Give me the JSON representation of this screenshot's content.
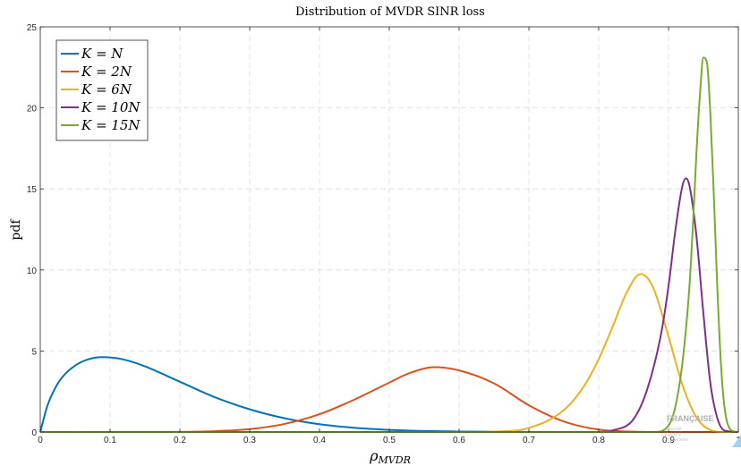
{
  "chart_data": {
    "type": "line",
    "title": "Distribution of MVDR SINR loss",
    "xlabel": "ρ_MVDR",
    "ylabel": "pdf",
    "xlim": [
      0,
      1
    ],
    "ylim": [
      0,
      25
    ],
    "xticks": [
      0,
      0.1,
      0.2,
      0.3,
      0.4,
      0.5,
      0.6,
      0.7,
      0.8,
      0.9,
      1
    ],
    "yticks": [
      0,
      5,
      10,
      15,
      20,
      25
    ],
    "grid": true,
    "legend_position": "top-left",
    "series": [
      {
        "name": "K = N",
        "color": "#0072BD",
        "x": [
          0,
          0.01,
          0.02,
          0.03,
          0.05,
          0.07,
          0.09,
          0.11,
          0.13,
          0.15,
          0.2,
          0.25,
          0.3,
          0.35,
          0.4,
          0.45,
          0.5,
          0.55,
          0.6,
          0.7,
          0.8,
          1
        ],
        "y": [
          0,
          1.6,
          2.6,
          3.3,
          4.1,
          4.5,
          4.62,
          4.55,
          4.35,
          4.05,
          3.1,
          2.15,
          1.4,
          0.85,
          0.48,
          0.26,
          0.13,
          0.06,
          0.03,
          0.005,
          0,
          0
        ]
      },
      {
        "name": "K = 2N",
        "color": "#D95319",
        "x": [
          0,
          0.2,
          0.25,
          0.3,
          0.35,
          0.4,
          0.45,
          0.5,
          0.53,
          0.565,
          0.6,
          0.65,
          0.7,
          0.75,
          0.8,
          0.85,
          0.9,
          1
        ],
        "y": [
          0,
          0.01,
          0.05,
          0.18,
          0.5,
          1.1,
          2.0,
          3.05,
          3.65,
          4.0,
          3.8,
          3.0,
          1.65,
          0.65,
          0.15,
          0.02,
          0,
          0
        ]
      },
      {
        "name": "K = 6N",
        "color": "#EDB120",
        "x": [
          0,
          0.6,
          0.65,
          0.7,
          0.75,
          0.78,
          0.8,
          0.82,
          0.84,
          0.86,
          0.87,
          0.88,
          0.9,
          0.92,
          0.94,
          0.96,
          0.98,
          1
        ],
        "y": [
          0,
          0,
          0.03,
          0.25,
          1.35,
          2.9,
          4.5,
          6.5,
          8.6,
          9.75,
          9.5,
          8.7,
          5.9,
          2.9,
          0.9,
          0.12,
          0,
          0
        ]
      },
      {
        "name": "K = 10N",
        "color": "#7E2F8E",
        "x": [
          0,
          0.8,
          0.82,
          0.85,
          0.87,
          0.89,
          0.9,
          0.91,
          0.92,
          0.925,
          0.93,
          0.94,
          0.95,
          0.96,
          0.97,
          0.98,
          1
        ],
        "y": [
          0,
          0,
          0.1,
          0.8,
          2.7,
          6.2,
          9.0,
          12.5,
          15.2,
          15.65,
          15.2,
          12.1,
          7.3,
          3.0,
          0.85,
          0.1,
          0
        ]
      },
      {
        "name": "K = 15N",
        "color": "#77AC30",
        "x": [
          0,
          0.88,
          0.9,
          0.91,
          0.92,
          0.93,
          0.935,
          0.94,
          0.945,
          0.95,
          0.955,
          0.96,
          0.965,
          0.97,
          0.975,
          0.98,
          0.99,
          1
        ],
        "y": [
          0,
          0,
          0.4,
          1.6,
          4.3,
          9.0,
          12.8,
          17.2,
          20.8,
          23.1,
          22.8,
          19.6,
          14.5,
          8.8,
          4.3,
          1.6,
          0.1,
          0
        ]
      }
    ]
  },
  "watermark": {
    "text": "FRANÇAISE",
    "line1": "Liberté",
    "line2": "Égalité",
    "line3": "Fraternité"
  }
}
